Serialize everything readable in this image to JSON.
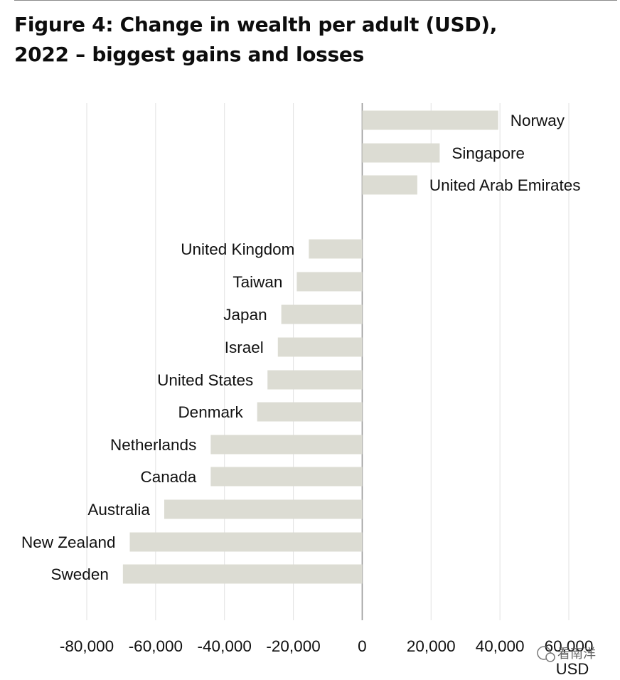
{
  "figure": {
    "title_line1": "Figure 4: Change in wealth per adult (USD),",
    "title_line2": "2022 – biggest gains and losses"
  },
  "chart_data": {
    "type": "bar",
    "orientation": "horizontal",
    "title": "Figure 4: Change in wealth per adult (USD), 2022 – biggest gains and losses",
    "categories": [
      "Norway",
      "Singapore",
      "United Arab Emirates",
      "United Kingdom",
      "Taiwan",
      "Japan",
      "Israel",
      "United States",
      "Denmark",
      "Netherlands",
      "Canada",
      "Australia",
      "New Zealand",
      "Sweden"
    ],
    "values": [
      39500,
      22500,
      16000,
      -15500,
      -19000,
      -23500,
      -24500,
      -27500,
      -30500,
      -44000,
      -44000,
      -57500,
      -67500,
      -69500
    ],
    "xlabel": "USD",
    "xlim": [
      -80000,
      60000
    ],
    "xticks": [
      -80000,
      -60000,
      -40000,
      -20000,
      0,
      20000,
      40000,
      60000
    ],
    "xtick_labels": [
      "-80,000",
      "-60,000",
      "-40,000",
      "-20,000",
      "0",
      "20,000",
      "40,000",
      "60,000"
    ],
    "grid": true,
    "bar_color": "#dcdcd3",
    "gridline_color": "#e2e2e2",
    "zero_line_color": "#9a9a9a"
  },
  "watermark": {
    "text": "看南洋"
  }
}
